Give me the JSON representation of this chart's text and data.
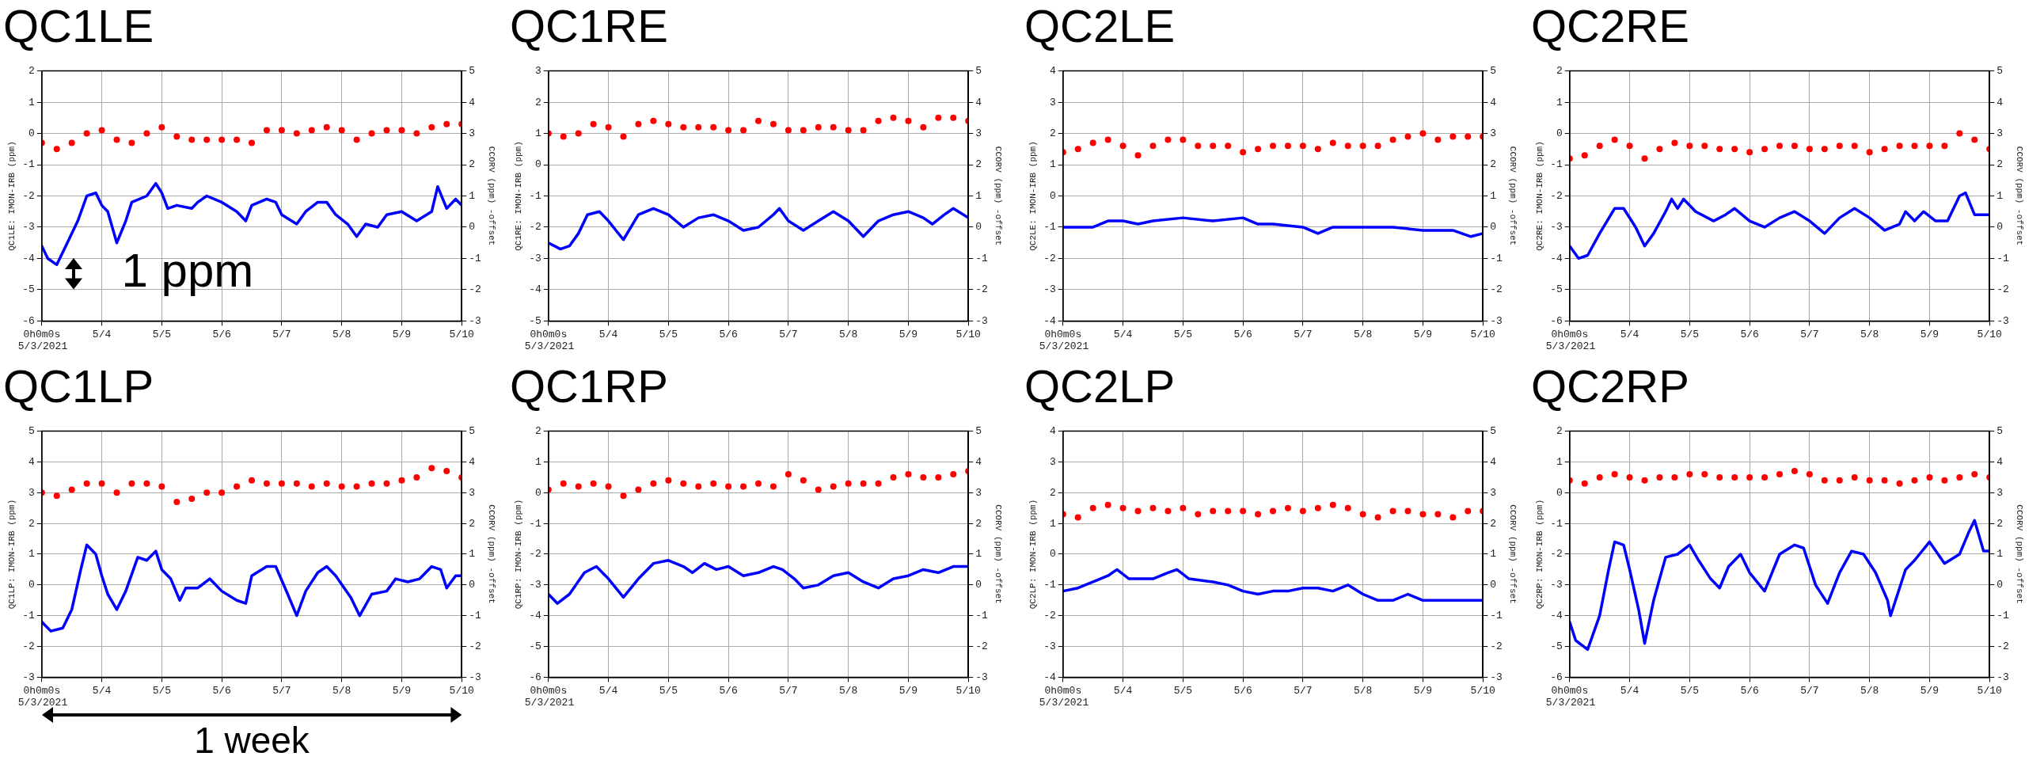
{
  "chart_data": [
    {
      "type": "scatter",
      "title": "QC1LE",
      "ylabel": "QC1LE: IMON-IRB (ppm)",
      "y2label": "CCORV (ppm) -offset",
      "annotations": [
        "5/3/2021",
        "1 ppm"
      ],
      "grid": true,
      "xlim": [
        "2021-05-03T00:00",
        "2021-05-10T00:00"
      ],
      "xticks": [
        {
          "value": "2021-05-03T00:00",
          "label": "0h0m0s"
        },
        {
          "value": "2021-05-04",
          "label": "5/4"
        },
        {
          "value": "2021-05-05",
          "label": "5/5"
        },
        {
          "value": "2021-05-06",
          "label": "5/6"
        },
        {
          "value": "2021-05-07",
          "label": "5/7"
        },
        {
          "value": "2021-05-08",
          "label": "5/8"
        },
        {
          "value": "2021-05-09",
          "label": "5/9"
        },
        {
          "value": "2021-05-10",
          "label": "5/10"
        }
      ],
      "ylim": [
        -6,
        2
      ],
      "yticks": [
        -6,
        -5,
        -4,
        -3,
        -2,
        -1,
        0,
        1,
        2
      ],
      "y2lim": [
        -3,
        5
      ],
      "y2ticks": [
        -3,
        -2,
        -1,
        0,
        1,
        2,
        3,
        4,
        5
      ],
      "x": [
        "2021-05-03T00:00",
        "2021-05-03T06:00",
        "2021-05-03T12:00",
        "2021-05-03T18:00",
        "2021-05-04T00:00",
        "2021-05-04T06:00",
        "2021-05-04T12:00",
        "2021-05-04T18:00",
        "2021-05-05T00:00",
        "2021-05-05T06:00",
        "2021-05-05T12:00",
        "2021-05-05T18:00",
        "2021-05-06T00:00",
        "2021-05-06T06:00",
        "2021-05-06T12:00",
        "2021-05-06T18:00",
        "2021-05-07T00:00",
        "2021-05-07T06:00",
        "2021-05-07T12:00",
        "2021-05-07T18:00",
        "2021-05-08T00:00",
        "2021-05-08T06:00",
        "2021-05-08T12:00",
        "2021-05-08T18:00",
        "2021-05-09T00:00",
        "2021-05-09T06:00",
        "2021-05-09T12:00",
        "2021-05-09T18:00",
        "2021-05-10T00:00"
      ],
      "series": [
        {
          "marker": "circle",
          "color": "#ff0000",
          "values": [
            -0.3,
            -0.5,
            -0.3,
            0.0,
            0.1,
            -0.2,
            -0.3,
            0.0,
            0.2,
            -0.1,
            -0.2,
            -0.2,
            -0.2,
            -0.2,
            -0.3,
            0.1,
            0.1,
            0.0,
            0.1,
            0.2,
            0.1,
            -0.2,
            0.0,
            0.1,
            0.1,
            0.0,
            0.2,
            0.3,
            0.3
          ]
        },
        {
          "type": "line",
          "axis": "y2",
          "color": "#0000ff",
          "x": [
            "2021-05-03T00:00",
            "2021-05-03T02:24",
            "2021-05-03T06:00",
            "2021-05-03T09:36",
            "2021-05-03T14:24",
            "2021-05-03T18:00",
            "2021-05-03T21:36",
            "2021-05-04T00:00",
            "2021-05-04T02:24",
            "2021-05-04T06:00",
            "2021-05-04T09:36",
            "2021-05-04T12:00",
            "2021-05-04T18:00",
            "2021-05-04T21:36",
            "2021-05-05T00:00",
            "2021-05-05T02:24",
            "2021-05-05T06:00",
            "2021-05-05T12:00",
            "2021-05-05T14:24",
            "2021-05-05T18:00",
            "2021-05-06T00:00",
            "2021-05-06T06:00",
            "2021-05-06T09:36",
            "2021-05-06T12:00",
            "2021-05-06T18:00",
            "2021-05-06T21:36",
            "2021-05-07T00:00",
            "2021-05-07T06:00",
            "2021-05-07T09:36",
            "2021-05-07T14:24",
            "2021-05-07T18:00",
            "2021-05-07T21:36",
            "2021-05-08T02:24",
            "2021-05-08T06:00",
            "2021-05-08T09:36",
            "2021-05-08T14:24",
            "2021-05-08T18:00",
            "2021-05-09T00:00",
            "2021-05-09T06:00",
            "2021-05-09T12:00",
            "2021-05-09T14:24",
            "2021-05-09T18:00",
            "2021-05-09T21:36",
            "2021-05-10T00:00"
          ],
          "values": [
            -0.6,
            -1.0,
            -1.2,
            -0.6,
            0.2,
            1.0,
            1.1,
            0.7,
            0.5,
            -0.5,
            0.2,
            0.8,
            1.0,
            1.4,
            1.1,
            0.6,
            0.7,
            0.6,
            0.8,
            1.0,
            0.8,
            0.5,
            0.2,
            0.7,
            0.9,
            0.8,
            0.4,
            0.1,
            0.5,
            0.8,
            0.8,
            0.4,
            0.1,
            -0.3,
            0.1,
            0.0,
            0.4,
            0.5,
            0.2,
            0.5,
            1.3,
            0.6,
            0.9,
            0.7
          ]
        }
      ]
    },
    {
      "type": "scatter",
      "title": "QC1RE",
      "ylabel": "QC1RE: IMON-IRB (ppm)",
      "y2label": "CCORV (ppm) -offset",
      "annotations": [
        "5/3/2021"
      ],
      "grid": true,
      "xlim": [
        "2021-05-03T00:00",
        "2021-05-10T00:00"
      ],
      "xticks": [
        {
          "value": "2021-05-03T00:00",
          "label": "0h0m0s"
        },
        {
          "value": "2021-05-04",
          "label": "5/4"
        },
        {
          "value": "2021-05-05",
          "label": "5/5"
        },
        {
          "value": "2021-05-06",
          "label": "5/6"
        },
        {
          "value": "2021-05-07",
          "label": "5/7"
        },
        {
          "value": "2021-05-08",
          "label": "5/8"
        },
        {
          "value": "2021-05-09",
          "label": "5/9"
        },
        {
          "value": "2021-05-10",
          "label": "5/10"
        }
      ],
      "ylim": [
        -5,
        3
      ],
      "yticks": [
        -5,
        -4,
        -3,
        -2,
        -1,
        0,
        1,
        2,
        3
      ],
      "y2lim": [
        -3,
        5
      ],
      "y2ticks": [
        -3,
        -2,
        -1,
        0,
        1,
        2,
        3,
        4,
        5
      ],
      "x": [
        "2021-05-03T00:00",
        "2021-05-03T06:00",
        "2021-05-03T12:00",
        "2021-05-03T18:00",
        "2021-05-04T00:00",
        "2021-05-04T06:00",
        "2021-05-04T12:00",
        "2021-05-04T18:00",
        "2021-05-05T00:00",
        "2021-05-05T06:00",
        "2021-05-05T12:00",
        "2021-05-05T18:00",
        "2021-05-06T00:00",
        "2021-05-06T06:00",
        "2021-05-06T12:00",
        "2021-05-06T18:00",
        "2021-05-07T00:00",
        "2021-05-07T06:00",
        "2021-05-07T12:00",
        "2021-05-07T18:00",
        "2021-05-08T00:00",
        "2021-05-08T06:00",
        "2021-05-08T12:00",
        "2021-05-08T18:00",
        "2021-05-09T00:00",
        "2021-05-09T06:00",
        "2021-05-09T12:00",
        "2021-05-09T18:00",
        "2021-05-10T00:00"
      ],
      "series": [
        {
          "marker": "circle",
          "color": "#ff0000",
          "values": [
            1.0,
            0.9,
            1.0,
            1.3,
            1.2,
            0.9,
            1.3,
            1.4,
            1.3,
            1.2,
            1.2,
            1.2,
            1.1,
            1.1,
            1.4,
            1.3,
            1.1,
            1.1,
            1.2,
            1.2,
            1.1,
            1.1,
            1.4,
            1.5,
            1.4,
            1.2,
            1.5,
            1.5,
            1.4
          ]
        },
        {
          "type": "line",
          "axis": "y2",
          "color": "#0000ff",
          "x": [
            "2021-05-03T00:00",
            "2021-05-03T04:48",
            "2021-05-03T08:24",
            "2021-05-03T12:00",
            "2021-05-03T15:36",
            "2021-05-03T20:24",
            "2021-05-04T00:00",
            "2021-05-04T06:00",
            "2021-05-04T12:00",
            "2021-05-04T18:00",
            "2021-05-05T00:00",
            "2021-05-05T06:00",
            "2021-05-05T12:00",
            "2021-05-05T18:00",
            "2021-05-06T00:00",
            "2021-05-06T06:00",
            "2021-05-06T12:00",
            "2021-05-06T18:00",
            "2021-05-06T20:24",
            "2021-05-07T00:00",
            "2021-05-07T06:00",
            "2021-05-07T12:00",
            "2021-05-07T18:00",
            "2021-05-08T00:00",
            "2021-05-08T06:00",
            "2021-05-08T12:00",
            "2021-05-08T18:00",
            "2021-05-09T00:00",
            "2021-05-09T06:00",
            "2021-05-09T09:36",
            "2021-05-09T14:24",
            "2021-05-09T18:00",
            "2021-05-10T00:00"
          ],
          "values": [
            -0.5,
            -0.7,
            -0.6,
            -0.2,
            0.4,
            0.5,
            0.2,
            -0.4,
            0.4,
            0.6,
            0.4,
            0.0,
            0.3,
            0.4,
            0.2,
            -0.1,
            0.0,
            0.4,
            0.6,
            0.2,
            -0.1,
            0.2,
            0.5,
            0.2,
            -0.3,
            0.2,
            0.4,
            0.5,
            0.3,
            0.1,
            0.4,
            0.6,
            0.3
          ]
        }
      ]
    },
    {
      "type": "scatter",
      "title": "QC2LE",
      "ylabel": "QC2LE: IMON-IRB (ppm)",
      "y2label": "CCORV (ppm) -offset",
      "annotations": [
        "5/3/2021"
      ],
      "grid": true,
      "xlim": [
        "2021-05-03T00:00",
        "2021-05-10T00:00"
      ],
      "xticks": [
        {
          "value": "2021-05-03T00:00",
          "label": "0h0m0s"
        },
        {
          "value": "2021-05-04",
          "label": "5/4"
        },
        {
          "value": "2021-05-05",
          "label": "5/5"
        },
        {
          "value": "2021-05-06",
          "label": "5/6"
        },
        {
          "value": "2021-05-07",
          "label": "5/7"
        },
        {
          "value": "2021-05-08",
          "label": "5/8"
        },
        {
          "value": "2021-05-09",
          "label": "5/9"
        },
        {
          "value": "2021-05-10",
          "label": "5/10"
        }
      ],
      "ylim": [
        -4,
        4
      ],
      "yticks": [
        -4,
        -3,
        -2,
        -1,
        0,
        1,
        2,
        3,
        4
      ],
      "y2lim": [
        -3,
        5
      ],
      "y2ticks": [
        -3,
        -2,
        -1,
        0,
        1,
        2,
        3,
        4,
        5
      ],
      "x": [
        "2021-05-03T00:00",
        "2021-05-03T06:00",
        "2021-05-03T12:00",
        "2021-05-03T18:00",
        "2021-05-04T00:00",
        "2021-05-04T06:00",
        "2021-05-04T12:00",
        "2021-05-04T18:00",
        "2021-05-05T00:00",
        "2021-05-05T06:00",
        "2021-05-05T12:00",
        "2021-05-05T18:00",
        "2021-05-06T00:00",
        "2021-05-06T06:00",
        "2021-05-06T12:00",
        "2021-05-06T18:00",
        "2021-05-07T00:00",
        "2021-05-07T06:00",
        "2021-05-07T12:00",
        "2021-05-07T18:00",
        "2021-05-08T00:00",
        "2021-05-08T06:00",
        "2021-05-08T12:00",
        "2021-05-08T18:00",
        "2021-05-09T00:00",
        "2021-05-09T06:00",
        "2021-05-09T12:00",
        "2021-05-09T18:00",
        "2021-05-10T00:00"
      ],
      "series": [
        {
          "marker": "circle",
          "color": "#ff0000",
          "values": [
            1.4,
            1.5,
            1.7,
            1.8,
            1.6,
            1.3,
            1.6,
            1.8,
            1.8,
            1.6,
            1.6,
            1.6,
            1.4,
            1.5,
            1.6,
            1.6,
            1.6,
            1.5,
            1.7,
            1.6,
            1.6,
            1.6,
            1.8,
            1.9,
            2.0,
            1.8,
            1.9,
            1.9,
            1.9
          ]
        },
        {
          "type": "line",
          "axis": "y2",
          "color": "#0000ff",
          "x": [
            "2021-05-03T00:00",
            "2021-05-03T12:00",
            "2021-05-03T18:00",
            "2021-05-04T00:00",
            "2021-05-04T06:00",
            "2021-05-04T12:00",
            "2021-05-05T00:00",
            "2021-05-05T12:00",
            "2021-05-06T00:00",
            "2021-05-06T06:00",
            "2021-05-06T12:00",
            "2021-05-07T00:00",
            "2021-05-07T06:00",
            "2021-05-07T12:00",
            "2021-05-08T00:00",
            "2021-05-08T12:00",
            "2021-05-09T00:00",
            "2021-05-09T12:00",
            "2021-05-09T19:12",
            "2021-05-10T00:00"
          ],
          "values": [
            0.0,
            0.0,
            0.2,
            0.2,
            0.1,
            0.2,
            0.3,
            0.2,
            0.3,
            0.1,
            0.1,
            0.0,
            -0.2,
            0.0,
            0.0,
            0.0,
            -0.1,
            -0.1,
            -0.3,
            -0.2
          ]
        }
      ]
    },
    {
      "type": "scatter",
      "title": "QC2RE",
      "ylabel": "QC2RE: IMON-IRB (ppm)",
      "y2label": "CCORV (ppm) -offset",
      "annotations": [
        "5/3/2021"
      ],
      "grid": true,
      "xlim": [
        "2021-05-03T00:00",
        "2021-05-10T00:00"
      ],
      "xticks": [
        {
          "value": "2021-05-03T00:00",
          "label": "0h0m0s"
        },
        {
          "value": "2021-05-04",
          "label": "5/4"
        },
        {
          "value": "2021-05-05",
          "label": "5/5"
        },
        {
          "value": "2021-05-06",
          "label": "5/6"
        },
        {
          "value": "2021-05-07",
          "label": "5/7"
        },
        {
          "value": "2021-05-08",
          "label": "5/8"
        },
        {
          "value": "2021-05-09",
          "label": "5/9"
        },
        {
          "value": "2021-05-10",
          "label": "5/10"
        }
      ],
      "ylim": [
        -6,
        2
      ],
      "yticks": [
        -6,
        -5,
        -4,
        -3,
        -2,
        -1,
        0,
        1,
        2
      ],
      "y2lim": [
        -3,
        5
      ],
      "y2ticks": [
        -3,
        -2,
        -1,
        0,
        1,
        2,
        3,
        4,
        5
      ],
      "x": [
        "2021-05-03T00:00",
        "2021-05-03T06:00",
        "2021-05-03T12:00",
        "2021-05-03T18:00",
        "2021-05-04T00:00",
        "2021-05-04T06:00",
        "2021-05-04T12:00",
        "2021-05-04T18:00",
        "2021-05-05T00:00",
        "2021-05-05T06:00",
        "2021-05-05T12:00",
        "2021-05-05T18:00",
        "2021-05-06T00:00",
        "2021-05-06T06:00",
        "2021-05-06T12:00",
        "2021-05-06T18:00",
        "2021-05-07T00:00",
        "2021-05-07T06:00",
        "2021-05-07T12:00",
        "2021-05-07T18:00",
        "2021-05-08T00:00",
        "2021-05-08T06:00",
        "2021-05-08T12:00",
        "2021-05-08T18:00",
        "2021-05-09T00:00",
        "2021-05-09T06:00",
        "2021-05-09T12:00",
        "2021-05-09T18:00",
        "2021-05-10T00:00"
      ],
      "series": [
        {
          "marker": "circle",
          "color": "#ff0000",
          "values": [
            -0.8,
            -0.7,
            -0.4,
            -0.2,
            -0.4,
            -0.8,
            -0.5,
            -0.3,
            -0.4,
            -0.4,
            -0.5,
            -0.5,
            -0.6,
            -0.5,
            -0.4,
            -0.4,
            -0.5,
            -0.5,
            -0.4,
            -0.4,
            -0.6,
            -0.5,
            -0.4,
            -0.4,
            -0.4,
            -0.4,
            0.0,
            -0.2,
            -0.5
          ]
        },
        {
          "type": "line",
          "axis": "y2",
          "color": "#0000ff",
          "x": [
            "2021-05-03T00:00",
            "2021-05-03T03:36",
            "2021-05-03T07:12",
            "2021-05-03T12:00",
            "2021-05-03T18:00",
            "2021-05-03T21:36",
            "2021-05-04T02:24",
            "2021-05-04T06:00",
            "2021-05-04T09:36",
            "2021-05-04T14:24",
            "2021-05-04T16:48",
            "2021-05-04T19:12",
            "2021-05-04T21:36",
            "2021-05-05T02:24",
            "2021-05-05T09:36",
            "2021-05-05T14:24",
            "2021-05-05T18:00",
            "2021-05-06T00:00",
            "2021-05-06T06:00",
            "2021-05-06T12:00",
            "2021-05-06T18:00",
            "2021-05-07T00:00",
            "2021-05-07T06:00",
            "2021-05-07T12:00",
            "2021-05-07T18:00",
            "2021-05-08T00:00",
            "2021-05-08T06:00",
            "2021-05-08T12:00",
            "2021-05-08T14:24",
            "2021-05-08T18:00",
            "2021-05-08T21:36",
            "2021-05-09T02:24",
            "2021-05-09T07:12",
            "2021-05-09T12:00",
            "2021-05-09T14:24",
            "2021-05-09T18:00",
            "2021-05-10T00:00"
          ],
          "values": [
            -0.6,
            -1.0,
            -0.9,
            -0.2,
            0.6,
            0.6,
            0.0,
            -0.6,
            -0.2,
            0.5,
            0.9,
            0.6,
            0.9,
            0.5,
            0.2,
            0.4,
            0.6,
            0.2,
            0.0,
            0.3,
            0.5,
            0.2,
            -0.2,
            0.3,
            0.6,
            0.3,
            -0.1,
            0.1,
            0.5,
            0.2,
            0.5,
            0.2,
            0.2,
            1.0,
            1.1,
            0.4,
            0.4
          ]
        }
      ]
    },
    {
      "type": "scatter",
      "title": "QC1LP",
      "ylabel": "QC1LP: IMON-IRB (ppm)",
      "y2label": "CCORV (ppm) -offset",
      "annotations": [
        "5/3/2021",
        "1 week"
      ],
      "grid": true,
      "xlim": [
        "2021-05-03T00:00",
        "2021-05-10T00:00"
      ],
      "xticks": [
        {
          "value": "2021-05-03T00:00",
          "label": "0h0m0s"
        },
        {
          "value": "2021-05-04",
          "label": "5/4"
        },
        {
          "value": "2021-05-05",
          "label": "5/5"
        },
        {
          "value": "2021-05-06",
          "label": "5/6"
        },
        {
          "value": "2021-05-07",
          "label": "5/7"
        },
        {
          "value": "2021-05-08",
          "label": "5/8"
        },
        {
          "value": "2021-05-09",
          "label": "5/9"
        },
        {
          "value": "2021-05-10",
          "label": "5/10"
        }
      ],
      "ylim": [
        -3,
        5
      ],
      "yticks": [
        -3,
        -2,
        -1,
        0,
        1,
        2,
        3,
        4,
        5
      ],
      "y2lim": [
        -3,
        5
      ],
      "y2ticks": [
        -3,
        -2,
        -1,
        0,
        1,
        2,
        3,
        4,
        5
      ],
      "x": [
        "2021-05-03T00:00",
        "2021-05-03T06:00",
        "2021-05-03T12:00",
        "2021-05-03T18:00",
        "2021-05-04T00:00",
        "2021-05-04T06:00",
        "2021-05-04T12:00",
        "2021-05-04T18:00",
        "2021-05-05T00:00",
        "2021-05-05T06:00",
        "2021-05-05T12:00",
        "2021-05-05T18:00",
        "2021-05-06T00:00",
        "2021-05-06T06:00",
        "2021-05-06T12:00",
        "2021-05-06T18:00",
        "2021-05-07T00:00",
        "2021-05-07T06:00",
        "2021-05-07T12:00",
        "2021-05-07T18:00",
        "2021-05-08T00:00",
        "2021-05-08T06:00",
        "2021-05-08T12:00",
        "2021-05-08T18:00",
        "2021-05-09T00:00",
        "2021-05-09T06:00",
        "2021-05-09T12:00",
        "2021-05-09T18:00",
        "2021-05-10T00:00"
      ],
      "series": [
        {
          "marker": "circle",
          "color": "#ff0000",
          "values": [
            3.0,
            2.9,
            3.1,
            3.3,
            3.3,
            3.0,
            3.3,
            3.3,
            3.2,
            2.7,
            2.8,
            3.0,
            3.0,
            3.2,
            3.4,
            3.3,
            3.3,
            3.3,
            3.2,
            3.3,
            3.2,
            3.2,
            3.3,
            3.3,
            3.4,
            3.5,
            3.8,
            3.7,
            3.5
          ]
        },
        {
          "type": "line",
          "axis": "y2",
          "color": "#0000ff",
          "x": [
            "2021-05-03T00:00",
            "2021-05-03T03:36",
            "2021-05-03T08:24",
            "2021-05-03T12:00",
            "2021-05-03T15:36",
            "2021-05-03T18:00",
            "2021-05-03T21:36",
            "2021-05-04T00:00",
            "2021-05-04T02:24",
            "2021-05-04T06:00",
            "2021-05-04T09:36",
            "2021-05-04T14:24",
            "2021-05-04T18:00",
            "2021-05-04T21:36",
            "2021-05-05T00:00",
            "2021-05-05T03:36",
            "2021-05-05T07:12",
            "2021-05-05T09:36",
            "2021-05-05T14:24",
            "2021-05-05T19:12",
            "2021-05-06T00:00",
            "2021-05-06T06:00",
            "2021-05-06T09:36",
            "2021-05-06T12:00",
            "2021-05-06T18:00",
            "2021-05-06T21:36",
            "2021-05-07T02:24",
            "2021-05-07T06:00",
            "2021-05-07T09:36",
            "2021-05-07T14:24",
            "2021-05-07T18:00",
            "2021-05-07T21:36",
            "2021-05-08T03:36",
            "2021-05-08T07:12",
            "2021-05-08T12:00",
            "2021-05-08T18:00",
            "2021-05-08T21:36",
            "2021-05-09T02:24",
            "2021-05-09T07:12",
            "2021-05-09T12:00",
            "2021-05-09T15:36",
            "2021-05-09T18:00",
            "2021-05-09T21:36",
            "2021-05-10T00:00"
          ],
          "values": [
            -1.2,
            -1.5,
            -1.4,
            -0.8,
            0.5,
            1.3,
            1.0,
            0.3,
            -0.3,
            -0.8,
            -0.2,
            0.9,
            0.8,
            1.1,
            0.5,
            0.2,
            -0.5,
            -0.1,
            -0.1,
            0.2,
            -0.2,
            -0.5,
            -0.6,
            0.3,
            0.6,
            0.6,
            -0.3,
            -1.0,
            -0.2,
            0.4,
            0.6,
            0.3,
            -0.4,
            -1.0,
            -0.3,
            -0.2,
            0.2,
            0.1,
            0.2,
            0.6,
            0.5,
            -0.1,
            0.3,
            0.3
          ]
        }
      ]
    },
    {
      "type": "scatter",
      "title": "QC1RP",
      "ylabel": "QC1RP: IMON-IRB (ppm)",
      "y2label": "CCORV (ppm) -offset",
      "annotations": [
        "5/3/2021"
      ],
      "grid": true,
      "xlim": [
        "2021-05-03T00:00",
        "2021-05-10T00:00"
      ],
      "xticks": [
        {
          "value": "2021-05-03T00:00",
          "label": "0h0m0s"
        },
        {
          "value": "2021-05-04",
          "label": "5/4"
        },
        {
          "value": "2021-05-05",
          "label": "5/5"
        },
        {
          "value": "2021-05-06",
          "label": "5/6"
        },
        {
          "value": "2021-05-07",
          "label": "5/7"
        },
        {
          "value": "2021-05-08",
          "label": "5/8"
        },
        {
          "value": "2021-05-09",
          "label": "5/9"
        },
        {
          "value": "2021-05-10",
          "label": "5/10"
        }
      ],
      "ylim": [
        -6,
        2
      ],
      "yticks": [
        -6,
        -5,
        -4,
        -3,
        -2,
        -1,
        0,
        1,
        2
      ],
      "y2lim": [
        -3,
        5
      ],
      "y2ticks": [
        -3,
        -2,
        -1,
        0,
        1,
        2,
        3,
        4,
        5
      ],
      "x": [
        "2021-05-03T00:00",
        "2021-05-03T06:00",
        "2021-05-03T12:00",
        "2021-05-03T18:00",
        "2021-05-04T00:00",
        "2021-05-04T06:00",
        "2021-05-04T12:00",
        "2021-05-04T18:00",
        "2021-05-05T00:00",
        "2021-05-05T06:00",
        "2021-05-05T12:00",
        "2021-05-05T18:00",
        "2021-05-06T00:00",
        "2021-05-06T06:00",
        "2021-05-06T12:00",
        "2021-05-06T18:00",
        "2021-05-07T00:00",
        "2021-05-07T06:00",
        "2021-05-07T12:00",
        "2021-05-07T18:00",
        "2021-05-08T00:00",
        "2021-05-08T06:00",
        "2021-05-08T12:00",
        "2021-05-08T18:00",
        "2021-05-09T00:00",
        "2021-05-09T06:00",
        "2021-05-09T12:00",
        "2021-05-09T18:00",
        "2021-05-10T00:00"
      ],
      "series": [
        {
          "marker": "circle",
          "color": "#ff0000",
          "values": [
            0.1,
            0.3,
            0.2,
            0.3,
            0.2,
            -0.1,
            0.1,
            0.3,
            0.4,
            0.3,
            0.2,
            0.3,
            0.2,
            0.2,
            0.3,
            0.2,
            0.6,
            0.4,
            0.1,
            0.2,
            0.3,
            0.3,
            0.3,
            0.5,
            0.6,
            0.5,
            0.5,
            0.6,
            0.7
          ]
        },
        {
          "type": "line",
          "axis": "y2",
          "color": "#0000ff",
          "x": [
            "2021-05-03T00:00",
            "2021-05-03T03:36",
            "2021-05-03T08:24",
            "2021-05-03T14:24",
            "2021-05-03T19:12",
            "2021-05-04T00:00",
            "2021-05-04T06:00",
            "2021-05-04T12:00",
            "2021-05-04T18:00",
            "2021-05-05T00:00",
            "2021-05-05T06:00",
            "2021-05-05T09:36",
            "2021-05-05T14:24",
            "2021-05-05T19:12",
            "2021-05-06T00:00",
            "2021-05-06T06:00",
            "2021-05-06T12:00",
            "2021-05-06T18:00",
            "2021-05-06T21:36",
            "2021-05-07T02:24",
            "2021-05-07T06:00",
            "2021-05-07T12:00",
            "2021-05-07T18:00",
            "2021-05-08T00:00",
            "2021-05-08T06:00",
            "2021-05-08T12:00",
            "2021-05-08T18:00",
            "2021-05-09T00:00",
            "2021-05-09T06:00",
            "2021-05-09T12:00",
            "2021-05-09T18:00",
            "2021-05-10T00:00"
          ],
          "values": [
            -0.3,
            -0.6,
            -0.3,
            0.4,
            0.6,
            0.2,
            -0.4,
            0.2,
            0.7,
            0.8,
            0.6,
            0.4,
            0.7,
            0.5,
            0.6,
            0.3,
            0.4,
            0.6,
            0.5,
            0.2,
            -0.1,
            0.0,
            0.3,
            0.4,
            0.1,
            -0.1,
            0.2,
            0.3,
            0.5,
            0.4,
            0.6,
            0.6
          ]
        }
      ]
    },
    {
      "type": "scatter",
      "title": "QC2LP",
      "ylabel": "QC2LP: IMON-IRB (ppm)",
      "y2label": "CCORV (ppm) -offset",
      "annotations": [
        "5/3/2021"
      ],
      "grid": true,
      "xlim": [
        "2021-05-03T00:00",
        "2021-05-10T00:00"
      ],
      "xticks": [
        {
          "value": "2021-05-03T00:00",
          "label": "0h0m0s"
        },
        {
          "value": "2021-05-04",
          "label": "5/4"
        },
        {
          "value": "2021-05-05",
          "label": "5/5"
        },
        {
          "value": "2021-05-06",
          "label": "5/6"
        },
        {
          "value": "2021-05-07",
          "label": "5/7"
        },
        {
          "value": "2021-05-08",
          "label": "5/8"
        },
        {
          "value": "2021-05-09",
          "label": "5/9"
        },
        {
          "value": "2021-05-10",
          "label": "5/10"
        }
      ],
      "ylim": [
        -4,
        4
      ],
      "yticks": [
        -4,
        -3,
        -2,
        -1,
        0,
        1,
        2,
        3,
        4
      ],
      "y2lim": [
        -3,
        5
      ],
      "y2ticks": [
        -3,
        -2,
        -1,
        0,
        1,
        2,
        3,
        4,
        5
      ],
      "x": [
        "2021-05-03T00:00",
        "2021-05-03T06:00",
        "2021-05-03T12:00",
        "2021-05-03T18:00",
        "2021-05-04T00:00",
        "2021-05-04T06:00",
        "2021-05-04T12:00",
        "2021-05-04T18:00",
        "2021-05-05T00:00",
        "2021-05-05T06:00",
        "2021-05-05T12:00",
        "2021-05-05T18:00",
        "2021-05-06T00:00",
        "2021-05-06T06:00",
        "2021-05-06T12:00",
        "2021-05-06T18:00",
        "2021-05-07T00:00",
        "2021-05-07T06:00",
        "2021-05-07T12:00",
        "2021-05-07T18:00",
        "2021-05-08T00:00",
        "2021-05-08T06:00",
        "2021-05-08T12:00",
        "2021-05-08T18:00",
        "2021-05-09T00:00",
        "2021-05-09T06:00",
        "2021-05-09T12:00",
        "2021-05-09T18:00",
        "2021-05-10T00:00"
      ],
      "series": [
        {
          "marker": "circle",
          "color": "#ff0000",
          "values": [
            1.3,
            1.2,
            1.5,
            1.6,
            1.5,
            1.4,
            1.5,
            1.4,
            1.5,
            1.3,
            1.4,
            1.4,
            1.4,
            1.3,
            1.4,
            1.5,
            1.4,
            1.5,
            1.6,
            1.5,
            1.3,
            1.2,
            1.4,
            1.4,
            1.3,
            1.3,
            1.2,
            1.4,
            1.4
          ]
        },
        {
          "type": "line",
          "axis": "y2",
          "color": "#0000ff",
          "x": [
            "2021-05-03T00:00",
            "2021-05-03T06:00",
            "2021-05-03T12:00",
            "2021-05-03T18:00",
            "2021-05-03T21:36",
            "2021-05-04T02:24",
            "2021-05-04T12:00",
            "2021-05-04T18:00",
            "2021-05-04T21:36",
            "2021-05-05T02:24",
            "2021-05-05T12:00",
            "2021-05-05T18:00",
            "2021-05-06T00:00",
            "2021-05-06T06:00",
            "2021-05-06T12:00",
            "2021-05-06T18:00",
            "2021-05-07T00:00",
            "2021-05-07T06:00",
            "2021-05-07T12:00",
            "2021-05-07T18:00",
            "2021-05-08T00:00",
            "2021-05-08T06:00",
            "2021-05-08T12:00",
            "2021-05-08T18:00",
            "2021-05-09T00:00",
            "2021-05-09T06:00",
            "2021-05-09T12:00",
            "2021-05-10T00:00"
          ],
          "values": [
            -0.2,
            -0.1,
            0.1,
            0.3,
            0.5,
            0.2,
            0.2,
            0.4,
            0.5,
            0.2,
            0.1,
            0.0,
            -0.2,
            -0.3,
            -0.2,
            -0.2,
            -0.1,
            -0.1,
            -0.2,
            0.0,
            -0.3,
            -0.5,
            -0.5,
            -0.3,
            -0.5,
            -0.5,
            -0.5,
            -0.5
          ]
        }
      ]
    },
    {
      "type": "scatter",
      "title": "QC2RP",
      "ylabel": "QC2RP: IMON-IRB (ppm)",
      "y2label": "CCORV (ppm) -offset",
      "annotations": [
        "5/3/2021"
      ],
      "grid": true,
      "xlim": [
        "2021-05-03T00:00",
        "2021-05-10T00:00"
      ],
      "xticks": [
        {
          "value": "2021-05-03T00:00",
          "label": "0h0m0s"
        },
        {
          "value": "2021-05-04",
          "label": "5/4"
        },
        {
          "value": "2021-05-05",
          "label": "5/5"
        },
        {
          "value": "2021-05-06",
          "label": "5/6"
        },
        {
          "value": "2021-05-07",
          "label": "5/7"
        },
        {
          "value": "2021-05-08",
          "label": "5/8"
        },
        {
          "value": "2021-05-09",
          "label": "5/9"
        },
        {
          "value": "2021-05-10",
          "label": "5/10"
        }
      ],
      "ylim": [
        -6,
        2
      ],
      "yticks": [
        -6,
        -5,
        -4,
        -3,
        -2,
        -1,
        0,
        1,
        2
      ],
      "y2lim": [
        -3,
        5
      ],
      "y2ticks": [
        -3,
        -2,
        -1,
        0,
        1,
        2,
        3,
        4,
        5
      ],
      "x": [
        "2021-05-03T00:00",
        "2021-05-03T06:00",
        "2021-05-03T12:00",
        "2021-05-03T18:00",
        "2021-05-04T00:00",
        "2021-05-04T06:00",
        "2021-05-04T12:00",
        "2021-05-04T18:00",
        "2021-05-05T00:00",
        "2021-05-05T06:00",
        "2021-05-05T12:00",
        "2021-05-05T18:00",
        "2021-05-06T00:00",
        "2021-05-06T06:00",
        "2021-05-06T12:00",
        "2021-05-06T18:00",
        "2021-05-07T00:00",
        "2021-05-07T06:00",
        "2021-05-07T12:00",
        "2021-05-07T18:00",
        "2021-05-08T00:00",
        "2021-05-08T06:00",
        "2021-05-08T12:00",
        "2021-05-08T18:00",
        "2021-05-09T00:00",
        "2021-05-09T06:00",
        "2021-05-09T12:00",
        "2021-05-09T18:00",
        "2021-05-10T00:00"
      ],
      "series": [
        {
          "marker": "circle",
          "color": "#ff0000",
          "values": [
            0.4,
            0.3,
            0.5,
            0.6,
            0.5,
            0.4,
            0.5,
            0.5,
            0.6,
            0.6,
            0.5,
            0.5,
            0.5,
            0.5,
            0.6,
            0.7,
            0.6,
            0.4,
            0.4,
            0.5,
            0.4,
            0.4,
            0.3,
            0.4,
            0.5,
            0.4,
            0.5,
            0.6,
            0.5
          ]
        },
        {
          "type": "line",
          "axis": "y2",
          "color": "#0000ff",
          "x": [
            "2021-05-03T00:00",
            "2021-05-03T02:24",
            "2021-05-03T07:12",
            "2021-05-03T12:00",
            "2021-05-03T15:36",
            "2021-05-03T18:00",
            "2021-05-03T21:36",
            "2021-05-04T00:00",
            "2021-05-04T03:36",
            "2021-05-04T06:00",
            "2021-05-04T09:36",
            "2021-05-04T14:24",
            "2021-05-04T19:12",
            "2021-05-05T00:00",
            "2021-05-05T03:36",
            "2021-05-05T08:24",
            "2021-05-05T12:00",
            "2021-05-05T15:36",
            "2021-05-05T20:24",
            "2021-05-06T00:00",
            "2021-05-06T06:00",
            "2021-05-06T12:00",
            "2021-05-06T18:00",
            "2021-05-06T21:36",
            "2021-05-07T02:24",
            "2021-05-07T07:12",
            "2021-05-07T12:00",
            "2021-05-07T16:48",
            "2021-05-07T21:36",
            "2021-05-08T02:24",
            "2021-05-08T07:12",
            "2021-05-08T08:24",
            "2021-05-08T14:24",
            "2021-05-08T18:00",
            "2021-05-09T00:00",
            "2021-05-09T06:00",
            "2021-05-09T12:00",
            "2021-05-09T15:36",
            "2021-05-09T18:00",
            "2021-05-09T21:36",
            "2021-05-10T00:00"
          ],
          "values": [
            -1.2,
            -1.8,
            -2.1,
            -1.0,
            0.5,
            1.4,
            1.3,
            0.5,
            -0.8,
            -1.9,
            -0.5,
            0.9,
            1.0,
            1.3,
            0.8,
            0.2,
            -0.1,
            0.6,
            1.0,
            0.4,
            -0.2,
            1.0,
            1.3,
            1.2,
            0.0,
            -0.6,
            0.4,
            1.1,
            1.0,
            0.4,
            -0.5,
            -1.0,
            0.5,
            0.8,
            1.4,
            0.7,
            1.0,
            1.7,
            2.1,
            1.1,
            1.1
          ]
        }
      ]
    }
  ]
}
